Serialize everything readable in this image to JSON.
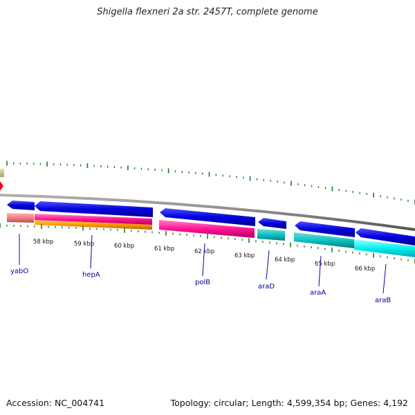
{
  "title": "Shigella flexneri 2a str. 2457T, complete genome",
  "footer": {
    "accession": "Accession: NC_004741",
    "summary": "Topology: circular; Length: 4,599,354 bp; Genes: 4,192"
  },
  "ticks": [
    "58 kbp",
    "59 kbp",
    "60 kbp",
    "61 kbp",
    "62 kbp",
    "63 kbp",
    "64 kbp",
    "65 kbp",
    "66 kbp"
  ],
  "gene_labels": [
    "yabO",
    "hepA",
    "polB",
    "araD",
    "araA",
    "araB"
  ],
  "colors": {
    "cds": "#1010e0",
    "backbone": "#8c8c8c",
    "tick": "#1a7a1a",
    "label": "#0000a0"
  }
}
